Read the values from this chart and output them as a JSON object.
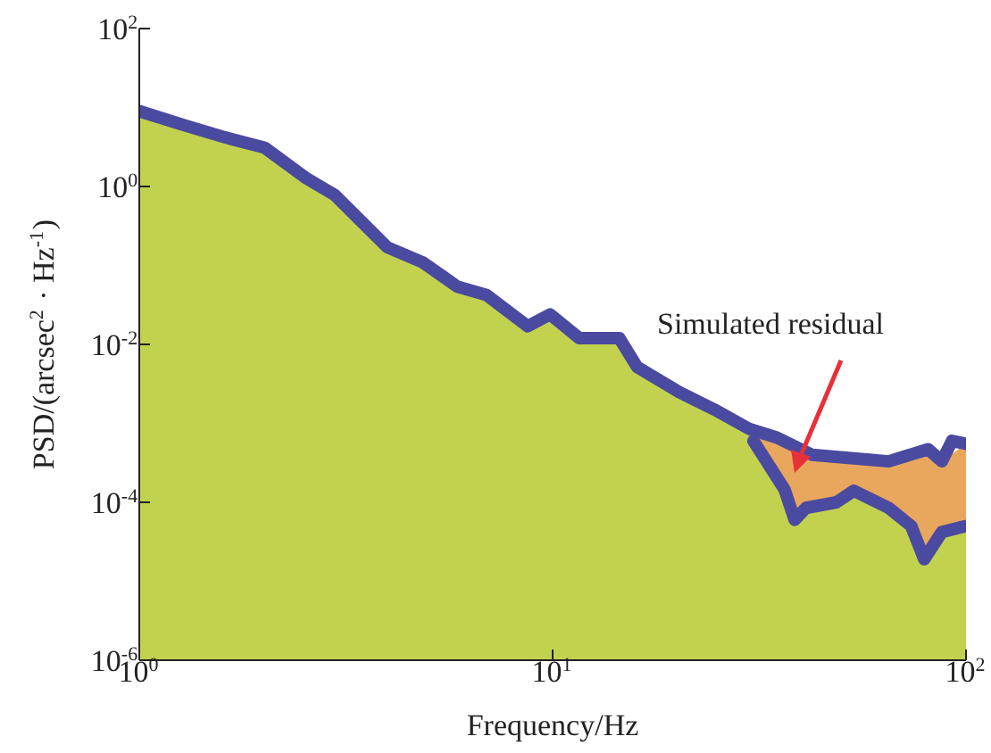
{
  "chart_data": {
    "type": "line",
    "xlabel": "Frequency/Hz",
    "ylabel": "PSD/(arcsec$^{2}$ · Hz$^{-1}$)",
    "log": "xy",
    "xlim": [
      1,
      100
    ],
    "xticks": [
      {
        "value": 1,
        "label": "10$^{0}$"
      },
      {
        "value": 10,
        "label": "10$^{1}$"
      },
      {
        "value": 100,
        "label": "10$^{2}$"
      }
    ],
    "ylim": [
      1e-06,
      100
    ],
    "yticks": [
      {
        "value": 1e-06,
        "label": "10$^{-6}$"
      },
      {
        "value": 0.0001,
        "label": "10$^{-4}$"
      },
      {
        "value": 0.01,
        "label": "10$^{-2}$"
      },
      {
        "value": 1,
        "label": "10$^{0}$"
      },
      {
        "value": 100,
        "label": "10$^{2}$"
      }
    ],
    "grid": false,
    "legend": false,
    "annotations": [
      "Simulated residual"
    ],
    "series": [
      {
        "type": "area",
        "color": "#e9a75e",
        "x": [
          30.6,
          36.4,
          38.5,
          41,
          48.6,
          53.5,
          65,
          73.7,
          79.2,
          87.4,
          100
        ],
        "values": [
          0.0008,
          0.0006,
          0.0005,
          0.00042,
          0.00038,
          0.00036,
          0.00033,
          0.00038,
          0.00045,
          0.00033,
          0.00055
        ]
      },
      {
        "type": "area",
        "color": "#c2d24e",
        "x": [
          1,
          1.28,
          1.61,
          2.01,
          2.52,
          2.97,
          3.98,
          4.84,
          5.88,
          6.93,
          8.7,
          9.86,
          11.6,
          14.5,
          16,
          20.2,
          24.6,
          29.9,
          30.6,
          36.4,
          38.5,
          41,
          48.6,
          53.5,
          65,
          73.7,
          79.2,
          87.4,
          100
        ],
        "values": [
          9,
          6,
          4.2,
          3.1,
          1.3,
          0.78,
          0.17,
          0.11,
          0.054,
          0.042,
          0.017,
          0.024,
          0.012,
          0.012,
          0.0052,
          0.0025,
          0.0015,
          0.00085,
          0.0006,
          0.000145,
          6e-05,
          8.5e-05,
          0.0001,
          0.00014,
          8.5e-05,
          5e-05,
          1.9e-05,
          4.2e-05,
          5e-05
        ]
      },
      {
        "color": "#4a4aa0",
        "x": [
          1,
          1.28,
          1.61,
          2.01,
          2.52,
          2.97,
          3.98,
          4.84,
          5.88,
          6.93,
          8.7,
          9.86,
          11.6,
          14.5,
          16,
          20.2,
          24.6,
          29.9,
          34.9,
          42.4,
          53.5,
          65,
          81,
          87.4,
          92.5,
          100
        ],
        "values": [
          9,
          6,
          4.2,
          3.1,
          1.3,
          0.78,
          0.17,
          0.11,
          0.054,
          0.042,
          0.017,
          0.024,
          0.012,
          0.012,
          0.0052,
          0.0025,
          0.0015,
          0.00085,
          0.00066,
          0.0004,
          0.00036,
          0.00033,
          0.00047,
          0.00033,
          0.0006,
          0.00055
        ]
      },
      {
        "color": "#4a4aa0",
        "x": [
          30.6,
          36.4,
          38.5,
          41,
          48.6,
          53.5,
          65,
          73.7,
          79.2,
          87.4,
          100
        ],
        "values": [
          0.0006,
          0.000145,
          6e-05,
          8.5e-05,
          0.0001,
          0.00014,
          8.5e-05,
          5e-05,
          1.9e-05,
          4.2e-05,
          5e-05
        ]
      }
    ]
  }
}
